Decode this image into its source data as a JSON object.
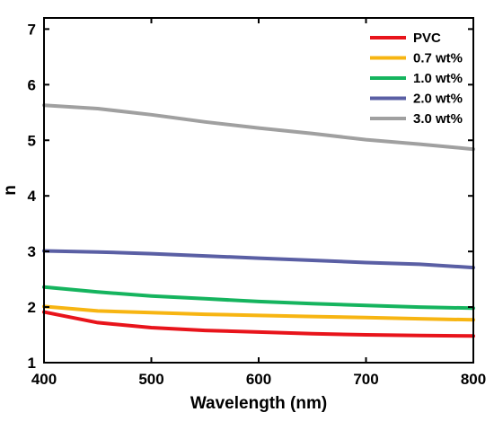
{
  "chart_data": {
    "type": "line",
    "title": "",
    "xlabel": "Wavelength (nm)",
    "ylabel": "n",
    "xlim": [
      400,
      800
    ],
    "ylim": [
      1,
      7.2
    ],
    "xticks": [
      "400",
      "500",
      "600",
      "700",
      "800"
    ],
    "yticks": [
      "1",
      "2",
      "3",
      "4",
      "5",
      "6",
      "7"
    ],
    "grid": false,
    "legend_position": "top-right",
    "x": [
      400,
      450,
      500,
      550,
      600,
      650,
      700,
      750,
      800
    ],
    "series": [
      {
        "name": "PVC",
        "color": "#e8141b",
        "values": [
          1.91,
          1.72,
          1.63,
          1.58,
          1.55,
          1.52,
          1.5,
          1.49,
          1.48
        ]
      },
      {
        "name": "0.7 wt%",
        "color": "#f7b512",
        "values": [
          2.01,
          1.93,
          1.9,
          1.87,
          1.85,
          1.83,
          1.81,
          1.79,
          1.77
        ]
      },
      {
        "name": "1.0 wt%",
        "color": "#15b45e",
        "values": [
          2.36,
          2.27,
          2.2,
          2.15,
          2.1,
          2.06,
          2.03,
          2.0,
          1.98
        ]
      },
      {
        "name": "2.0 wt%",
        "color": "#5a5fa4",
        "values": [
          3.01,
          2.99,
          2.96,
          2.92,
          2.88,
          2.84,
          2.8,
          2.77,
          2.71
        ]
      },
      {
        "name": "3.0 wt%",
        "color": "#a0a0a0",
        "values": [
          5.63,
          5.57,
          5.46,
          5.33,
          5.22,
          5.12,
          5.01,
          4.93,
          4.84
        ]
      }
    ]
  }
}
